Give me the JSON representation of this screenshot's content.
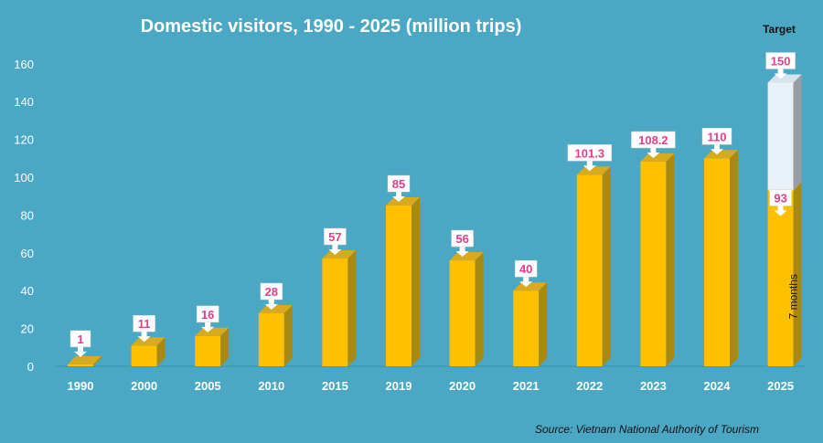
{
  "chart_data": {
    "type": "bar",
    "title": "Domestic visitors, 1990 - 2025 (million trips)",
    "categories": [
      "1990",
      "2000",
      "2005",
      "2010",
      "2015",
      "2019",
      "2020",
      "2021",
      "2022",
      "2023",
      "2024",
      "2025"
    ],
    "series": [
      {
        "values": [
          1,
          11,
          16,
          28,
          57,
          85,
          56,
          40,
          101.3,
          108.2,
          110,
          93
        ],
        "labels": [
          "1",
          "11",
          "16",
          "28",
          "57",
          "85",
          "56",
          "40",
          "101.3",
          "108.2",
          "110",
          "93"
        ]
      }
    ],
    "target": {
      "category": "2025",
      "value": 150,
      "label": "150",
      "header": "Target"
    },
    "annotation_2025": "7 months",
    "yticks": [
      0,
      20,
      40,
      60,
      80,
      100,
      120,
      140,
      160
    ],
    "ylim": [
      0,
      160
    ],
    "grid": false,
    "source": "Source: Vietnam National Authority of Tourism",
    "colors": {
      "background": "#4ba8c5",
      "bar_front": "#ffc000",
      "bar_side": "#a88a12",
      "bar_top": "#d7aa20",
      "target_front": "#e8f2f8",
      "label_text": "#e0408a"
    }
  }
}
